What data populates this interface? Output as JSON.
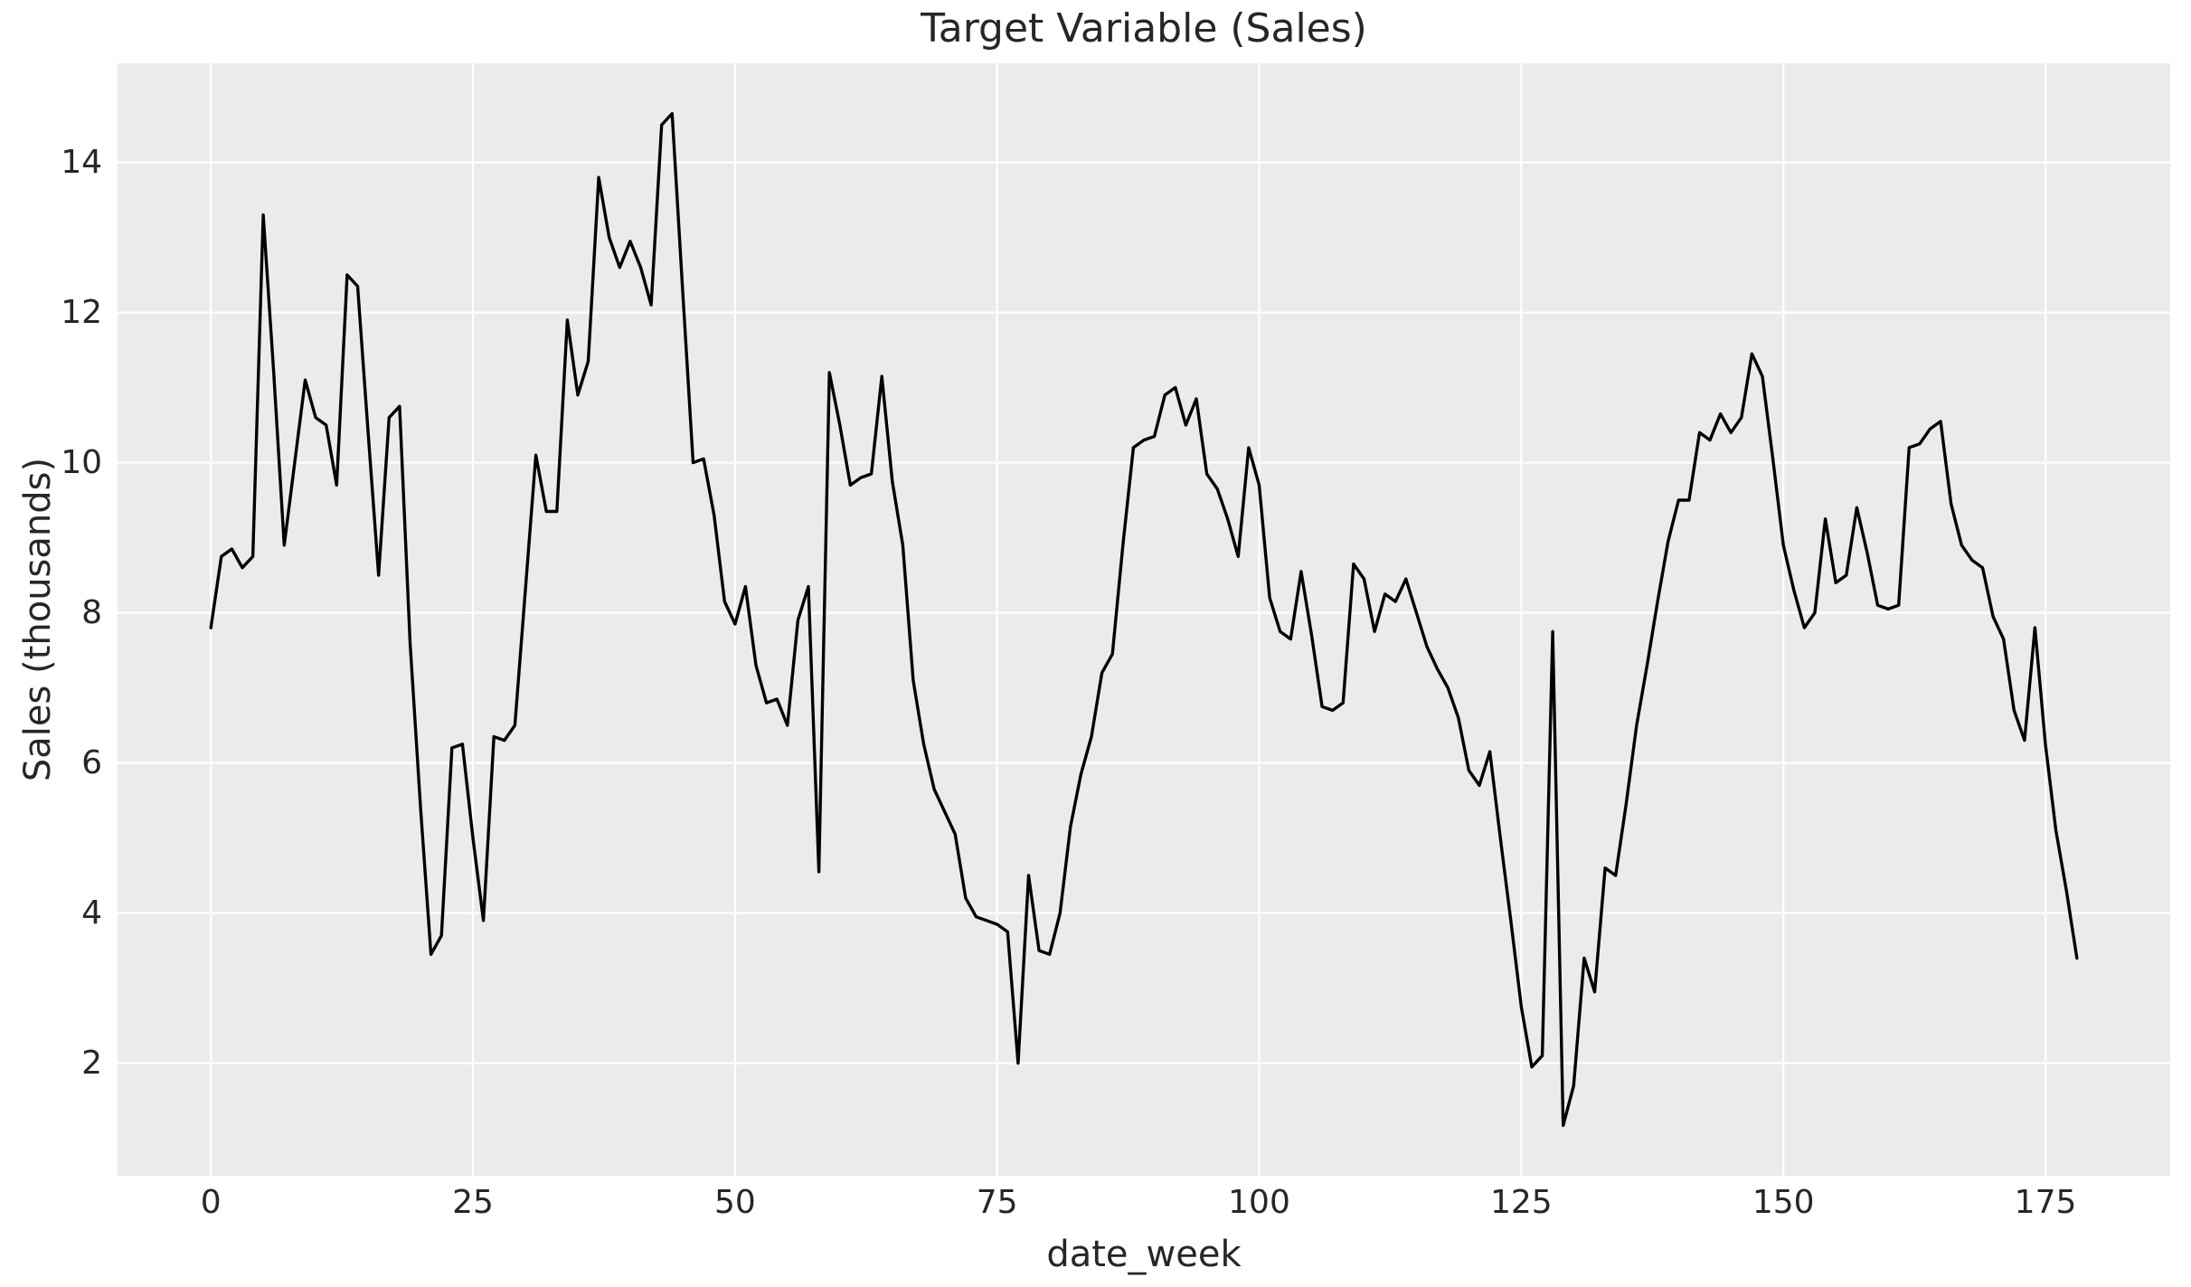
{
  "title": "Target Variable (Sales)",
  "xlabel": "date_week",
  "ylabel": "Sales (thousands)",
  "chart_data": {
    "type": "line",
    "title": "Target Variable (Sales)",
    "xlabel": "date_week",
    "ylabel": "Sales (thousands)",
    "x": {
      "label": "date_week",
      "start": 0,
      "step": 1,
      "count": 179
    },
    "series": [
      {
        "name": "Sales (thousands)",
        "color": "#000000",
        "line_width": 3.4,
        "values": [
          7.8,
          8.75,
          8.85,
          8.6,
          8.75,
          13.3,
          11.2,
          8.9,
          10.0,
          11.1,
          10.6,
          10.5,
          9.7,
          12.5,
          12.35,
          10.4,
          8.5,
          10.6,
          10.75,
          7.6,
          5.4,
          3.45,
          3.7,
          6.2,
          6.25,
          5.0,
          3.9,
          6.35,
          6.3,
          6.5,
          8.3,
          10.1,
          9.35,
          9.35,
          11.9,
          10.9,
          11.35,
          13.8,
          13.0,
          12.6,
          12.95,
          12.6,
          12.1,
          14.5,
          14.65,
          12.3,
          10.0,
          10.05,
          9.3,
          8.15,
          7.85,
          8.35,
          7.3,
          6.8,
          6.85,
          6.5,
          7.9,
          8.35,
          4.55,
          11.2,
          10.5,
          9.7,
          9.8,
          9.85,
          11.15,
          9.75,
          8.9,
          7.1,
          6.25,
          5.65,
          5.35,
          5.05,
          4.2,
          3.95,
          3.9,
          3.85,
          3.75,
          2.0,
          4.5,
          3.5,
          3.45,
          4.0,
          5.15,
          5.85,
          6.35,
          7.2,
          7.45,
          8.9,
          10.2,
          10.3,
          10.35,
          10.9,
          11.0,
          10.5,
          10.85,
          9.85,
          9.65,
          9.25,
          8.75,
          10.2,
          9.7,
          8.2,
          7.75,
          7.65,
          8.55,
          7.7,
          6.75,
          6.7,
          6.8,
          8.65,
          8.45,
          7.75,
          8.25,
          8.15,
          8.45,
          8.0,
          7.55,
          7.25,
          7.0,
          6.6,
          5.9,
          5.7,
          6.15,
          5.0,
          3.9,
          2.75,
          1.95,
          2.1,
          7.75,
          1.17,
          1.7,
          3.4,
          2.95,
          4.6,
          4.5,
          5.45,
          6.5,
          7.3,
          8.15,
          8.95,
          9.5,
          9.5,
          10.4,
          10.3,
          10.65,
          10.4,
          10.6,
          11.45,
          11.15,
          10.05,
          8.9,
          8.3,
          7.8,
          8.0,
          9.25,
          8.4,
          8.5,
          9.4,
          8.8,
          8.1,
          8.05,
          8.1,
          10.2,
          10.25,
          10.45,
          10.55,
          9.45,
          8.9,
          8.7,
          8.6,
          7.95,
          7.65,
          6.7,
          6.3,
          7.8,
          6.25,
          5.1,
          4.3,
          3.4
        ]
      }
    ],
    "xticks": [
      0,
      25,
      50,
      75,
      100,
      125,
      150,
      175
    ],
    "yticks": [
      2,
      4,
      6,
      8,
      10,
      12,
      14
    ],
    "xlim": [
      -8.9,
      186.9
    ],
    "ylim": [
      0.5,
      15.32
    ],
    "grid": true,
    "legend": null,
    "colors": {
      "plot_background": "#ebebeb",
      "figure_background": "#ffffff",
      "grid_line": "#ffffff",
      "text": "#262626",
      "line": "#000000"
    }
  }
}
